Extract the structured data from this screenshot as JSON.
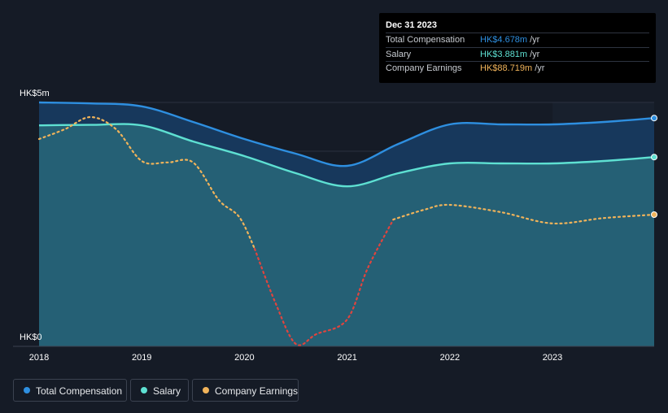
{
  "colors": {
    "background": "#151b26",
    "total": "#2e8fe0",
    "salary": "#5ee0d2",
    "earnings": "#f0b35a",
    "earnings_negative": "#e0443e"
  },
  "tooltip": {
    "date": "Dec 31 2023",
    "rows": [
      {
        "label": "Total Compensation",
        "value": "HK$4.678m",
        "unit": "/yr"
      },
      {
        "label": "Salary",
        "value": "HK$3.881m",
        "unit": "/yr"
      },
      {
        "label": "Company Earnings",
        "value": "HK$88.719m",
        "unit": "/yr"
      }
    ]
  },
  "legend": [
    {
      "label": "Total Compensation",
      "icon": "total-dot"
    },
    {
      "label": "Salary",
      "icon": "salary-dot"
    },
    {
      "label": "Company Earnings",
      "icon": "earnings-dot"
    }
  ],
  "chart_data": {
    "type": "area",
    "title": "",
    "xlabel": "",
    "ylabel": "",
    "y_ticks": [
      "HK$5m",
      "HK$0"
    ],
    "ylim": [
      0,
      5
    ],
    "xlim": [
      2018.0,
      2023.99
    ],
    "x_ticks": [
      {
        "label": "2018",
        "x": 2018
      },
      {
        "label": "2019",
        "x": 2019
      },
      {
        "label": "2020",
        "x": 2020
      },
      {
        "label": "2021",
        "x": 2021
      },
      {
        "label": "2022",
        "x": 2022
      },
      {
        "label": "2023",
        "x": 2023
      }
    ],
    "forecast_shade_start": 2023.0,
    "series": [
      {
        "name": "Total Compensation",
        "key": "total",
        "points": [
          [
            2018.0,
            5.0
          ],
          [
            2018.5,
            4.98
          ],
          [
            2019.0,
            4.92
          ],
          [
            2019.5,
            4.6
          ],
          [
            2020.0,
            4.25
          ],
          [
            2020.5,
            3.95
          ],
          [
            2021.0,
            3.7
          ],
          [
            2021.5,
            4.15
          ],
          [
            2022.0,
            4.55
          ],
          [
            2022.5,
            4.55
          ],
          [
            2023.0,
            4.55
          ],
          [
            2023.5,
            4.6
          ],
          [
            2023.99,
            4.68
          ]
        ]
      },
      {
        "name": "Salary",
        "key": "salary",
        "points": [
          [
            2018.0,
            4.53
          ],
          [
            2018.5,
            4.54
          ],
          [
            2019.0,
            4.53
          ],
          [
            2019.5,
            4.2
          ],
          [
            2020.0,
            3.9
          ],
          [
            2020.5,
            3.55
          ],
          [
            2021.0,
            3.28
          ],
          [
            2021.5,
            3.55
          ],
          [
            2022.0,
            3.75
          ],
          [
            2022.5,
            3.75
          ],
          [
            2023.0,
            3.75
          ],
          [
            2023.5,
            3.8
          ],
          [
            2023.99,
            3.88
          ]
        ]
      },
      {
        "name": "Company Earnings",
        "key": "earnings",
        "note": "scaled to the compensation axis",
        "points": [
          [
            2018.0,
            4.25
          ],
          [
            2018.25,
            4.45
          ],
          [
            2018.5,
            4.7
          ],
          [
            2018.75,
            4.45
          ],
          [
            2019.0,
            3.8
          ],
          [
            2019.25,
            3.77
          ],
          [
            2019.5,
            3.77
          ],
          [
            2019.75,
            3.0
          ],
          [
            2019.95,
            2.65
          ],
          [
            2020.1,
            2.0
          ],
          [
            2020.3,
            0.9
          ],
          [
            2020.5,
            0.05
          ],
          [
            2020.7,
            0.25
          ],
          [
            2021.0,
            0.55
          ],
          [
            2021.2,
            1.6
          ],
          [
            2021.45,
            2.6
          ],
          [
            2021.75,
            2.8
          ],
          [
            2022.0,
            2.9
          ],
          [
            2022.5,
            2.75
          ],
          [
            2023.0,
            2.52
          ],
          [
            2023.5,
            2.63
          ],
          [
            2023.99,
            2.7
          ]
        ]
      }
    ]
  }
}
